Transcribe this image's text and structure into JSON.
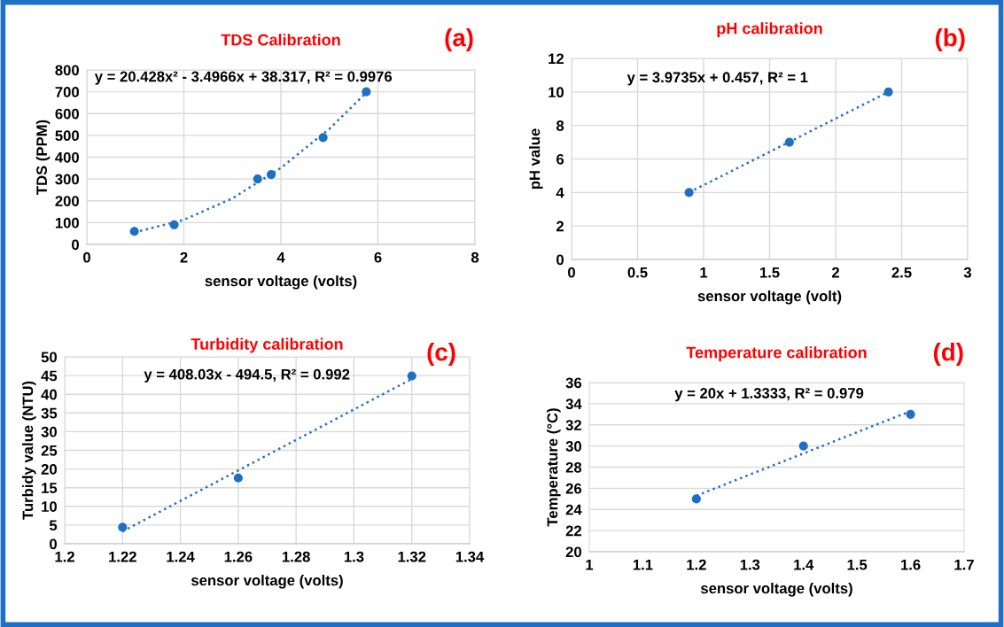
{
  "chart_data": [
    {
      "type": "scatter",
      "title": "TDS Calibration",
      "xlabel": "sensor voltage (volts)",
      "ylabel": "TDS (PPM)",
      "annotations": [
        "(a)",
        "y = 20.428x² - 3.4966x + 38.317, R² = 0.9976"
      ],
      "xlim": [
        0,
        8
      ],
      "xticks": [
        0,
        2,
        4,
        6,
        8
      ],
      "ylim": [
        0,
        800
      ],
      "yticks": [
        0,
        100,
        200,
        300,
        400,
        500,
        600,
        700,
        800
      ],
      "grid": true,
      "marker": "circle",
      "series": [
        {
          "color": "#1f6fc5",
          "x": [
            0.98,
            1.8,
            3.52,
            3.8,
            4.87,
            5.76
          ],
          "values": [
            60,
            90,
            300,
            320,
            490,
            700
          ]
        },
        {
          "type": "line",
          "line_style": "dotted",
          "marker": "none",
          "color": "#1f6fc5",
          "x": [
            0.98,
            2,
            3,
            4,
            5,
            5.76
          ],
          "values": [
            55,
            113,
            211,
            351,
            530,
            696
          ]
        }
      ]
    },
    {
      "type": "scatter",
      "title": "pH calibration",
      "xlabel": "sensor voltage (volt)",
      "ylabel": "pH value",
      "annotations": [
        "(b)",
        "y = 3.9735x + 0.457, R² = 1"
      ],
      "xlim": [
        0,
        3
      ],
      "xticks": [
        0,
        0.5,
        1,
        1.5,
        2,
        2.5,
        3
      ],
      "ylim": [
        0,
        12
      ],
      "yticks": [
        0,
        2,
        4,
        6,
        8,
        10,
        12
      ],
      "grid": true,
      "marker": "circle",
      "series": [
        {
          "color": "#1f6fc5",
          "x": [
            0.89,
            1.65,
            2.4
          ],
          "values": [
            4,
            7,
            10
          ]
        },
        {
          "type": "line",
          "line_style": "dotted",
          "marker": "none",
          "color": "#1f6fc5",
          "x": [
            0.89,
            2.4
          ],
          "values": [
            4,
            10
          ]
        }
      ]
    },
    {
      "type": "scatter",
      "title": "Turbidity calibration",
      "xlabel": "sensor voltage (volts)",
      "ylabel": "Turbidy value (NTU)",
      "annotations": [
        "(c)",
        "y = 408.03x - 494.5, R² = 0.992"
      ],
      "xlim": [
        1.2,
        1.34
      ],
      "xticks": [
        1.2,
        1.22,
        1.24,
        1.26,
        1.28,
        1.3,
        1.32,
        1.34
      ],
      "ylim": [
        0,
        50
      ],
      "yticks": [
        0,
        5,
        10,
        15,
        20,
        25,
        30,
        35,
        40,
        45,
        50
      ],
      "grid": true,
      "marker": "circle",
      "series": [
        {
          "color": "#1f6fc5",
          "x": [
            1.22,
            1.26,
            1.32
          ],
          "values": [
            4.4,
            17.6,
            44.9
          ]
        },
        {
          "type": "line",
          "line_style": "dotted",
          "marker": "none",
          "color": "#1f6fc5",
          "x": [
            1.22,
            1.32
          ],
          "values": [
            3.3,
            44.1
          ]
        }
      ]
    },
    {
      "type": "scatter",
      "title": "Temperature calibration",
      "xlabel": "sensor voltage (volts)",
      "ylabel": "Temperature (°C)",
      "annotations": [
        "(d)",
        "y = 20x + 1.3333, R² = 0.979"
      ],
      "xlim": [
        1,
        1.7
      ],
      "xticks": [
        1,
        1.1,
        1.2,
        1.3,
        1.4,
        1.5,
        1.6,
        1.7
      ],
      "ylim": [
        20,
        36
      ],
      "yticks": [
        20,
        22,
        24,
        26,
        28,
        30,
        32,
        34,
        36
      ],
      "grid": "y",
      "marker": "circle",
      "series": [
        {
          "color": "#1f6fc5",
          "x": [
            1.2,
            1.4,
            1.6
          ],
          "values": [
            25,
            30,
            33
          ]
        },
        {
          "type": "line",
          "line_style": "dotted",
          "marker": "none",
          "color": "#1f6fc5",
          "x": [
            1.2,
            1.6
          ],
          "values": [
            25.3,
            33.3
          ]
        }
      ]
    }
  ]
}
